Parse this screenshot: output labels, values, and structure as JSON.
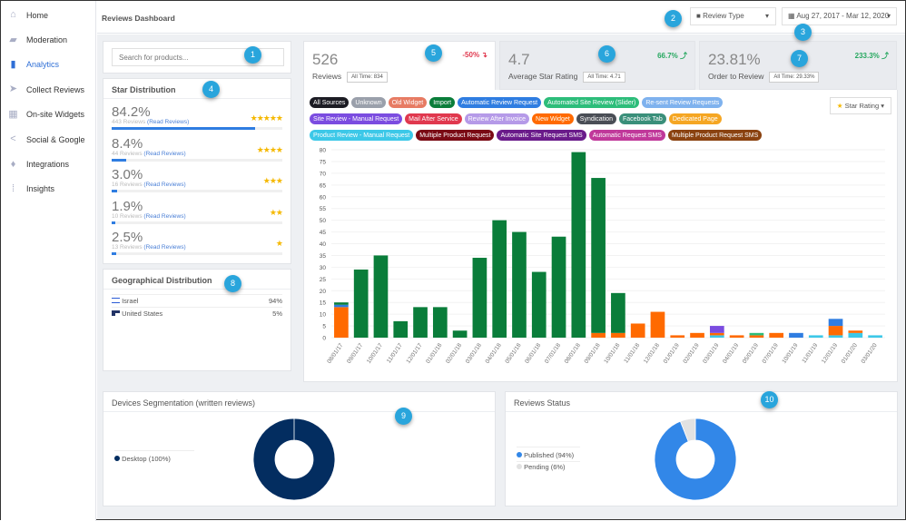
{
  "sidebar": {
    "items": [
      {
        "label": "Home",
        "icon": "home-icon",
        "glyph": "⌂"
      },
      {
        "label": "Moderation",
        "icon": "folder-icon",
        "glyph": "▰"
      },
      {
        "label": "Analytics",
        "icon": "bar-chart-icon",
        "glyph": "▮",
        "active": true
      },
      {
        "label": "Collect Reviews",
        "icon": "send-icon",
        "glyph": "➤"
      },
      {
        "label": "On-site Widgets",
        "icon": "widgets-icon",
        "glyph": "▦"
      },
      {
        "label": "Social & Google",
        "icon": "share-icon",
        "glyph": "<"
      },
      {
        "label": "Integrations",
        "icon": "plug-icon",
        "glyph": "♦"
      },
      {
        "label": "Insights",
        "icon": "grid-icon",
        "glyph": "⁞"
      }
    ]
  },
  "header": {
    "title": "Reviews Dashboard",
    "review_type": "Review Type",
    "date_range": "Aug 27, 2017 - Mar 12, 2020"
  },
  "search": {
    "placeholder": "Search for products..."
  },
  "star_distribution": {
    "title": "Star Distribution",
    "read_label": "(Read Reviews)",
    "rows": [
      {
        "pct": "84.2%",
        "reviews": "443 Reviews",
        "stars": "★★★★★",
        "fill": 84.2
      },
      {
        "pct": "8.4%",
        "reviews": "44 Reviews",
        "stars": "★★★★",
        "fill": 8.4
      },
      {
        "pct": "3.0%",
        "reviews": "16 Reviews",
        "stars": "★★★",
        "fill": 3.0
      },
      {
        "pct": "1.9%",
        "reviews": "10 Reviews",
        "stars": "★★",
        "fill": 1.9
      },
      {
        "pct": "2.5%",
        "reviews": "13 Reviews",
        "stars": "★",
        "fill": 2.5
      }
    ]
  },
  "geo": {
    "title": "Geographical Distribution",
    "rows": [
      {
        "country": "Israel",
        "pct": "94%"
      },
      {
        "country": "United States",
        "pct": "5%"
      }
    ]
  },
  "stats": [
    {
      "value": "526",
      "label": "Reviews",
      "all_time": "All Time: 834",
      "change": "-50% ↴",
      "color": "#e0384e"
    },
    {
      "value": "4.7",
      "label": "Average Star Rating",
      "all_time": "All Time: 4.71",
      "change": "66.7% ⤴",
      "color": "#27a860"
    },
    {
      "value": "23.81%",
      "label": "Order to Review",
      "all_time": "All Time: 29.33%",
      "change": "233.3% ⤴",
      "color": "#27a860"
    }
  ],
  "sources": [
    {
      "label": "All Sources",
      "color": "#1c1c24"
    },
    {
      "label": "Unknown",
      "color": "#9aa0ab"
    },
    {
      "label": "Old Widget",
      "color": "#e77b63"
    },
    {
      "label": "Import",
      "color": "#0a7d3a"
    },
    {
      "label": "Automatic Review Request",
      "color": "#2f7de1"
    },
    {
      "label": "Automated Site Review (Slider)",
      "color": "#2dbd7a"
    },
    {
      "label": "Re-sent Review Requests",
      "color": "#7fb2ee"
    },
    {
      "label": "Site Review - Manual Request",
      "color": "#7b4ce0"
    },
    {
      "label": "Mail After Service",
      "color": "#e0384e"
    },
    {
      "label": "Review After Invoice",
      "color": "#b59ae8"
    },
    {
      "label": "New Widget",
      "color": "#ff6a00"
    },
    {
      "label": "Syndication",
      "color": "#4a4e56"
    },
    {
      "label": "Facebook Tab",
      "color": "#3a8f7a"
    },
    {
      "label": "Dedicated Page",
      "color": "#f5a623"
    },
    {
      "label": "Product Review - Manual Request",
      "color": "#3cc8e8"
    },
    {
      "label": "Multiple Product Request",
      "color": "#7a0a14"
    },
    {
      "label": "Automatic Site Request SMS",
      "color": "#6a1b8a"
    },
    {
      "label": "Automatic Request SMS",
      "color": "#c0389a"
    },
    {
      "label": "Multiple Product Request SMS",
      "color": "#8a4210"
    }
  ],
  "star_rating_button": "Star Rating",
  "chart_data": {
    "type": "bar",
    "stacked": true,
    "ylim": [
      0,
      80
    ],
    "yticks": [
      0,
      5,
      10,
      15,
      20,
      25,
      30,
      35,
      40,
      45,
      50,
      55,
      60,
      65,
      70,
      75,
      80
    ],
    "grid": true,
    "categories": [
      "08/01/17",
      "09/01/17",
      "10/01/17",
      "11/01/17",
      "12/01/17",
      "01/01/18",
      "02/01/18",
      "03/01/18",
      "04/01/18",
      "05/01/18",
      "06/01/18",
      "07/01/18",
      "08/01/18",
      "09/01/18",
      "10/01/18",
      "11/01/18",
      "12/01/18",
      "01/01/19",
      "02/01/19",
      "03/01/19",
      "04/01/19",
      "05/01/19",
      "07/01/19",
      "10/01/19",
      "11/01/19",
      "12/01/19",
      "01/01/20",
      "03/01/20"
    ],
    "series": [
      {
        "name": "Product Review - Manual Request",
        "color": "#3cc8e8",
        "values": [
          0,
          0,
          0,
          0,
          0,
          0,
          0,
          0,
          0,
          0,
          0,
          0,
          0,
          0,
          0,
          0,
          0,
          0,
          0,
          1,
          0,
          0,
          0,
          0,
          1,
          1,
          2,
          1
        ]
      },
      {
        "name": "New Widget",
        "color": "#ff6a00",
        "values": [
          13,
          0,
          0,
          0,
          0,
          0,
          0,
          0,
          0,
          0,
          0,
          0,
          0,
          2,
          2,
          6,
          11,
          1,
          2,
          1,
          1,
          1,
          2,
          0,
          0,
          4,
          1,
          0
        ]
      },
      {
        "name": "Automated Site Review (Slider)",
        "color": "#2dbd7a",
        "values": [
          0,
          0,
          0,
          0,
          0,
          0,
          0,
          0,
          0,
          0,
          0,
          0,
          0,
          0,
          0,
          0,
          0,
          0,
          0,
          0,
          0,
          1,
          0,
          0,
          0,
          0,
          0,
          0
        ]
      },
      {
        "name": "Site Review - Manual Request",
        "color": "#7b4ce0",
        "values": [
          0,
          0,
          0,
          0,
          0,
          0,
          0,
          0,
          0,
          0,
          0,
          0,
          0,
          0,
          0,
          0,
          0,
          0,
          0,
          3,
          0,
          0,
          0,
          0,
          0,
          0,
          0,
          0
        ]
      },
      {
        "name": "Automatic Review Request",
        "color": "#2f7de1",
        "values": [
          1,
          0,
          0,
          0,
          0,
          0,
          0,
          0,
          0,
          0,
          0,
          0,
          0,
          0,
          0,
          0,
          0,
          0,
          0,
          0,
          0,
          0,
          0,
          2,
          0,
          3,
          0,
          0
        ]
      },
      {
        "name": "Import",
        "color": "#0a7d3a",
        "values": [
          1,
          29,
          35,
          7,
          13,
          13,
          3,
          34,
          50,
          45,
          28,
          43,
          79,
          66,
          17,
          0,
          0,
          0,
          0,
          0,
          0,
          0,
          0,
          0,
          0,
          0,
          0,
          0
        ]
      }
    ]
  },
  "devices": {
    "title": "Devices Segmentation (written reviews)",
    "legend": "Desktop (100%)",
    "color": "#032d60",
    "value": 100
  },
  "status": {
    "title": "Reviews Status",
    "published": "Published (94%)",
    "pending": "Pending (6%)",
    "published_color": "#3287e8",
    "pending_color": "#e2e2e2",
    "published_value": 94
  },
  "badges": [
    "1",
    "2",
    "3",
    "4",
    "5",
    "6",
    "7",
    "8",
    "9",
    "10"
  ]
}
